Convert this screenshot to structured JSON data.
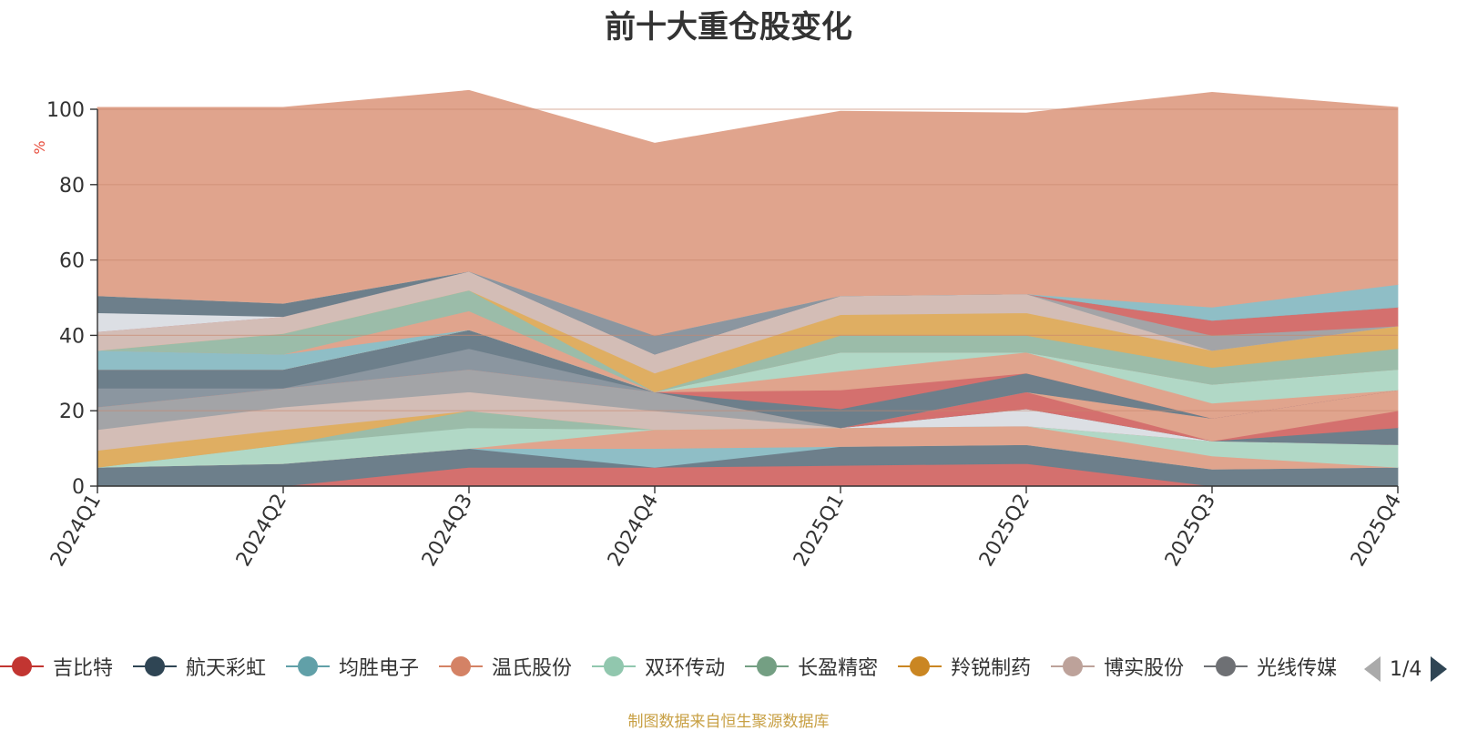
{
  "chart_data": {
    "type": "area",
    "title": "前十大重仓股变化",
    "ylabel": "%",
    "ylim": [
      0,
      100
    ],
    "yticks": [
      0,
      20,
      40,
      60,
      80,
      100
    ],
    "grid": true,
    "stacked": true,
    "categories": [
      "2024Q1",
      "2024Q2",
      "2024Q3",
      "2024Q4",
      "2025Q1",
      "2025Q2",
      "2025Q3",
      "2025Q4"
    ],
    "series": [
      {
        "name": "吉比特",
        "color": "#d4706e",
        "values": [
          0,
          0,
          5,
          5,
          5.5,
          6,
          0,
          0
        ]
      },
      {
        "name": "航天彩虹",
        "color": "#6d7f8b",
        "values": [
          5,
          6,
          5,
          0,
          5,
          5,
          4.5,
          5
        ]
      },
      {
        "name": "均胜电子",
        "color": "#8fbec6",
        "values": [
          0,
          0,
          0,
          5,
          0,
          0,
          0,
          0
        ]
      },
      {
        "name": "温氏股份",
        "color": "#e0a48d",
        "values": [
          0,
          0,
          0,
          5,
          5,
          5,
          3.5,
          0
        ]
      },
      {
        "name": "双环传动",
        "color": "#b1d8c6",
        "values": [
          0,
          5,
          5.5,
          0,
          0,
          0,
          4,
          6
        ]
      },
      {
        "name": "长盈精密",
        "color": "#9bbca9",
        "values": [
          0,
          0,
          4.5,
          0,
          0,
          0,
          0,
          0
        ]
      },
      {
        "name": "羚锐制药",
        "color": "#dfae62",
        "values": [
          4.5,
          4,
          0,
          0,
          0,
          0,
          0,
          0
        ]
      },
      {
        "name": "博实股份",
        "color": "#d3bdb6",
        "values": [
          5.5,
          6,
          5,
          5,
          0,
          0,
          0,
          0
        ]
      },
      {
        "name": "光线传媒",
        "color": "#a3a4a7",
        "values": [
          6,
          5,
          6,
          5,
          0,
          0,
          0,
          0
        ]
      },
      {
        "name": "",
        "color": "#dcdfe4",
        "values": [
          0,
          0,
          0,
          0,
          0,
          4.5,
          0,
          0
        ]
      },
      {
        "name": "",
        "color": "#6d7f8b",
        "values": [
          0,
          0,
          0,
          0,
          0,
          0,
          0,
          4.5
        ]
      },
      {
        "name": "",
        "color": "#d4706e",
        "values": [
          0,
          0,
          0,
          0,
          0,
          4.5,
          0,
          4.5
        ]
      },
      {
        "name": "",
        "color": "#e0a48d",
        "values": [
          0,
          0,
          0,
          0,
          0,
          0,
          6,
          5.5
        ]
      },
      {
        "name": "",
        "color": "#8b96a0",
        "values": [
          5,
          0,
          5.5,
          0,
          0,
          0,
          0,
          0
        ]
      },
      {
        "name": "",
        "color": "#6d7f8b",
        "values": [
          5,
          5,
          5,
          0,
          5,
          5,
          0,
          0
        ]
      },
      {
        "name": "",
        "color": "#d4706e",
        "values": [
          0,
          0,
          0,
          0,
          5,
          0,
          0,
          0
        ]
      },
      {
        "name": "",
        "color": "#e0a48d",
        "values": [
          0,
          0,
          0,
          0,
          5,
          5.5,
          4,
          0
        ]
      },
      {
        "name": "",
        "color": "#b1d8c6",
        "values": [
          0,
          0,
          0,
          0,
          5,
          0,
          5,
          5.5
        ]
      },
      {
        "name": "",
        "color": "#8fbec6",
        "values": [
          5,
          4,
          0,
          0,
          0,
          0,
          0,
          0
        ]
      },
      {
        "name": "",
        "color": "#e0a48d",
        "values": [
          0,
          0,
          5,
          0,
          0,
          0,
          0,
          0
        ]
      },
      {
        "name": "",
        "color": "#9bbca9",
        "values": [
          0,
          5.5,
          5.5,
          0,
          4.5,
          4.5,
          4.5,
          5.5
        ]
      },
      {
        "name": "",
        "color": "#dfae62",
        "values": [
          0,
          0,
          0,
          5,
          5.5,
          6,
          4.5,
          6
        ]
      },
      {
        "name": "",
        "color": "#d3bdb6",
        "values": [
          5,
          4.5,
          5,
          5,
          5,
          5,
          0,
          0
        ]
      },
      {
        "name": "",
        "color": "#a3a4a7",
        "values": [
          0,
          0,
          0,
          0,
          0,
          0,
          4,
          0
        ]
      },
      {
        "name": "",
        "color": "#d4706e",
        "values": [
          0,
          0,
          0,
          0,
          0,
          0,
          4,
          5
        ]
      },
      {
        "name": "",
        "color": "#dcdfe4",
        "values": [
          5,
          0,
          0,
          0,
          0,
          0,
          0,
          0
        ]
      },
      {
        "name": "",
        "color": "#6d7f8b",
        "values": [
          4.5,
          3.5,
          0,
          0,
          0,
          0,
          0,
          0
        ]
      },
      {
        "name": "",
        "color": "#8b96a0",
        "values": [
          0,
          0,
          0,
          5,
          0,
          0,
          0,
          0
        ]
      },
      {
        "name": "",
        "color": "#8fbec6",
        "values": [
          0,
          0,
          0,
          0,
          0,
          0,
          3.5,
          6
        ]
      },
      {
        "name": "",
        "color": "#e0a48d",
        "values": [
          50,
          52,
          48,
          51,
          49,
          48,
          57,
          47
        ]
      }
    ],
    "legend": {
      "position": "bottom",
      "items": [
        {
          "name": "吉比特",
          "color": "#c23531"
        },
        {
          "name": "航天彩虹",
          "color": "#2f4554"
        },
        {
          "name": "均胜电子",
          "color": "#61a0a8"
        },
        {
          "name": "温氏股份",
          "color": "#d48265"
        },
        {
          "name": "双环传动",
          "color": "#91c7ae"
        },
        {
          "name": "长盈精密",
          "color": "#749f83"
        },
        {
          "name": "羚锐制药",
          "color": "#ca8622"
        },
        {
          "name": "博实股份",
          "color": "#bda29a"
        },
        {
          "name": "光线传媒",
          "color": "#6e7074"
        }
      ],
      "page": "1/4"
    }
  },
  "footer": {
    "source": "制图数据来自恒生聚源数据库"
  }
}
